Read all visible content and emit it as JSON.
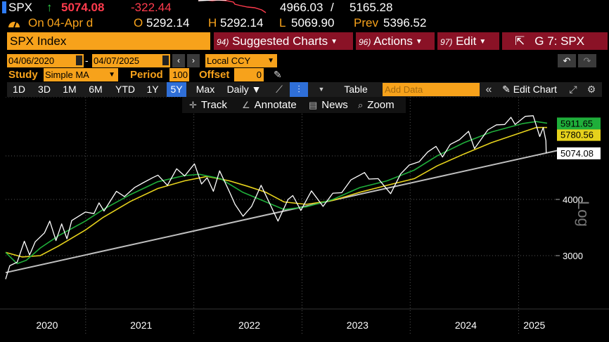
{
  "header": {
    "ticker": "SPX",
    "last": "5074.08",
    "change": "-322.44",
    "range_low": "4966.03",
    "range_sep": "/",
    "range_high": "5165.28"
  },
  "ohlc": {
    "on_label": "On",
    "on_date": "04-Apr d",
    "open_label": "O",
    "open": "5292.14",
    "high_label": "H",
    "high": "5292.14",
    "low_label": "L",
    "low": "5069.90",
    "prev_label": "Prev",
    "prev": "5396.52"
  },
  "function_bar": {
    "security": "SPX Index",
    "suggested": {
      "num": "94)",
      "label": "Suggested Charts"
    },
    "actions": {
      "num": "96)",
      "label": "Actions"
    },
    "edit": {
      "num": "97)",
      "label": "Edit"
    },
    "g7": "G 7: SPX"
  },
  "dates": {
    "start": "04/06/2020",
    "end": "04/07/2025",
    "ccy": "Local CCY"
  },
  "study": {
    "study_label": "Study",
    "study_value": "Simple MA",
    "period_label": "Period",
    "period_value": "100",
    "offset_label": "Offset",
    "offset_value": "0"
  },
  "range_toolbar": {
    "ranges": [
      "1D",
      "3D",
      "1M",
      "6M",
      "YTD",
      "1Y",
      "5Y",
      "Max"
    ],
    "active": "5Y",
    "frequency": "Daily",
    "table": "Table",
    "add_data_placeholder": "Add Data",
    "edit_chart": "Edit Chart"
  },
  "tools": {
    "track": "Track",
    "annotate": "Annotate",
    "news": "News",
    "zoom": "Zoom"
  },
  "colors": {
    "price": "#ffffff",
    "ma_green": "#1fae3a",
    "ma_yellow": "#e6d21c",
    "trendline": "#bfbfbf",
    "orange": "#f7a21b",
    "maroon": "#8a1226",
    "active_blue": "#2f6fd8"
  },
  "chart_data": {
    "type": "line",
    "y_scale": "log",
    "y_axis_label": "Log",
    "ylim": [
      2600,
      6500
    ],
    "y_ticks": [
      3000,
      4000
    ],
    "x_tick_labels": [
      "2020",
      "2021",
      "2022",
      "2023",
      "2024",
      "2025"
    ],
    "price_points": [
      [
        "2020-04-06",
        2660
      ],
      [
        "2020-04-20",
        2850
      ],
      [
        "2020-05-15",
        2900
      ],
      [
        "2020-06-08",
        3230
      ],
      [
        "2020-06-26",
        3010
      ],
      [
        "2020-07-15",
        3220
      ],
      [
        "2020-08-15",
        3370
      ],
      [
        "2020-09-02",
        3580
      ],
      [
        "2020-09-23",
        3240
      ],
      [
        "2020-10-12",
        3530
      ],
      [
        "2020-10-30",
        3270
      ],
      [
        "2020-11-15",
        3590
      ],
      [
        "2020-12-31",
        3750
      ],
      [
        "2021-01-29",
        3720
      ],
      [
        "2021-02-15",
        3930
      ],
      [
        "2021-03-04",
        3770
      ],
      [
        "2021-04-15",
        4170
      ],
      [
        "2021-05-12",
        4060
      ],
      [
        "2021-06-15",
        4250
      ],
      [
        "2021-07-15",
        4360
      ],
      [
        "2021-08-15",
        4470
      ],
      [
        "2021-09-02",
        4530
      ],
      [
        "2021-10-04",
        4300
      ],
      [
        "2021-11-04",
        4680
      ],
      [
        "2021-12-01",
        4510
      ],
      [
        "2022-01-03",
        4800
      ],
      [
        "2022-01-27",
        4330
      ],
      [
        "2022-02-15",
        4470
      ],
      [
        "2022-03-08",
        4170
      ],
      [
        "2022-03-29",
        4630
      ],
      [
        "2022-05-02",
        4150
      ],
      [
        "2022-05-20",
        3900
      ],
      [
        "2022-06-16",
        3670
      ],
      [
        "2022-07-15",
        3860
      ],
      [
        "2022-08-16",
        4300
      ],
      [
        "2022-09-13",
        3930
      ],
      [
        "2022-10-12",
        3580
      ],
      [
        "2022-11-15",
        4000
      ],
      [
        "2022-12-01",
        4080
      ],
      [
        "2022-12-28",
        3780
      ],
      [
        "2023-02-02",
        4180
      ],
      [
        "2023-03-13",
        3860
      ],
      [
        "2023-04-15",
        4130
      ],
      [
        "2023-05-15",
        4140
      ],
      [
        "2023-06-15",
        4420
      ],
      [
        "2023-07-31",
        4590
      ],
      [
        "2023-08-15",
        4440
      ],
      [
        "2023-09-15",
        4450
      ],
      [
        "2023-10-27",
        4120
      ],
      [
        "2023-11-30",
        4560
      ],
      [
        "2023-12-29",
        4770
      ],
      [
        "2024-01-31",
        4850
      ],
      [
        "2024-02-29",
        5100
      ],
      [
        "2024-03-28",
        5250
      ],
      [
        "2024-04-19",
        4970
      ],
      [
        "2024-05-15",
        5300
      ],
      [
        "2024-06-15",
        5430
      ],
      [
        "2024-07-16",
        5670
      ],
      [
        "2024-08-05",
        5190
      ],
      [
        "2024-09-19",
        5710
      ],
      [
        "2024-10-18",
        5860
      ],
      [
        "2024-11-15",
        5870
      ],
      [
        "2024-12-06",
        6090
      ],
      [
        "2024-12-20",
        5870
      ],
      [
        "2025-01-23",
        6120
      ],
      [
        "2025-02-19",
        6140
      ],
      [
        "2025-03-13",
        5520
      ],
      [
        "2025-03-25",
        5780
      ],
      [
        "2025-04-03",
        5400
      ],
      [
        "2025-04-04",
        5074
      ]
    ],
    "ma_green_points": [
      [
        "2020-04-06",
        3050
      ],
      [
        "2020-05-15",
        2880
      ],
      [
        "2020-06-15",
        2930
      ],
      [
        "2020-08-01",
        3120
      ],
      [
        "2020-10-01",
        3320
      ],
      [
        "2020-12-31",
        3580
      ],
      [
        "2021-03-01",
        3800
      ],
      [
        "2021-06-01",
        4100
      ],
      [
        "2021-09-01",
        4380
      ],
      [
        "2021-12-01",
        4520
      ],
      [
        "2022-01-20",
        4550
      ],
      [
        "2022-04-01",
        4450
      ],
      [
        "2022-06-15",
        4150
      ],
      [
        "2022-09-01",
        3950
      ],
      [
        "2022-11-01",
        3800
      ],
      [
        "2023-01-15",
        3850
      ],
      [
        "2023-04-15",
        4000
      ],
      [
        "2023-07-15",
        4250
      ],
      [
        "2023-10-15",
        4400
      ],
      [
        "2024-01-15",
        4650
      ],
      [
        "2024-04-01",
        5000
      ],
      [
        "2024-07-01",
        5350
      ],
      [
        "2024-10-01",
        5650
      ],
      [
        "2025-01-15",
        5900
      ],
      [
        "2025-03-01",
        5960
      ],
      [
        "2025-04-07",
        5912
      ]
    ],
    "ma_yellow_points": [
      [
        "2020-04-06",
        3050
      ],
      [
        "2020-06-01",
        2980
      ],
      [
        "2020-08-01",
        3000
      ],
      [
        "2020-10-01",
        3150
      ],
      [
        "2020-12-31",
        3420
      ],
      [
        "2021-03-01",
        3650
      ],
      [
        "2021-06-01",
        3960
      ],
      [
        "2021-09-01",
        4230
      ],
      [
        "2021-12-01",
        4400
      ],
      [
        "2022-02-15",
        4500
      ],
      [
        "2022-05-01",
        4400
      ],
      [
        "2022-07-01",
        4280
      ],
      [
        "2022-09-01",
        4150
      ],
      [
        "2022-11-01",
        3950
      ],
      [
        "2023-01-15",
        3900
      ],
      [
        "2023-04-15",
        3980
      ],
      [
        "2023-07-15",
        4150
      ],
      [
        "2023-10-15",
        4300
      ],
      [
        "2024-01-15",
        4450
      ],
      [
        "2024-04-01",
        4750
      ],
      [
        "2024-07-01",
        5050
      ],
      [
        "2024-10-01",
        5350
      ],
      [
        "2025-01-15",
        5650
      ],
      [
        "2025-03-01",
        5780
      ],
      [
        "2025-04-07",
        5780
      ]
    ],
    "trendline": [
      [
        "2020-04-06",
        2750
      ],
      [
        "2025-04-15",
        5150
      ]
    ],
    "price_label": "5074.08",
    "ma_green_label": "5911.65",
    "ma_yellow_label": "5780.56"
  }
}
